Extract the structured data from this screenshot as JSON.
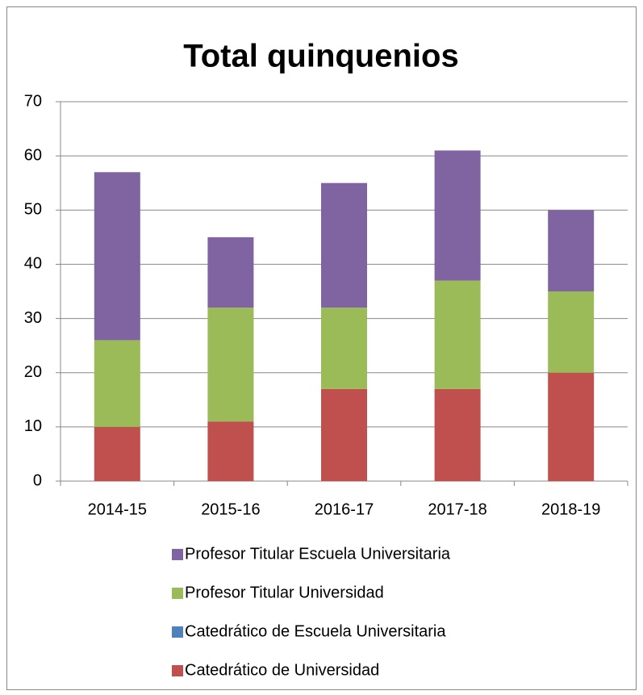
{
  "chart_data": {
    "type": "stacked-bar",
    "title": "Total quinquenios",
    "categories": [
      "2014-15",
      "2015-16",
      "2016-17",
      "2017-18",
      "2018-19"
    ],
    "series": [
      {
        "name": "Catedrático de Universidad",
        "color": "#c0504d",
        "values": [
          10,
          11,
          17,
          17,
          20
        ]
      },
      {
        "name": "Catedrático de Escuela Universitaria",
        "color": "#4f81bd",
        "values": [
          0,
          0,
          0,
          0,
          0
        ]
      },
      {
        "name": "Profesor Titular Universidad",
        "color": "#9bbb59",
        "values": [
          16,
          21,
          15,
          20,
          15
        ]
      },
      {
        "name": "Profesor Titular Escuela Universitaria",
        "color": "#8064a2",
        "values": [
          31,
          13,
          23,
          24,
          15
        ]
      }
    ],
    "ylim": [
      0,
      70
    ],
    "yticks": [
      0,
      10,
      20,
      30,
      40,
      50,
      60,
      70
    ],
    "grid": true,
    "legend": "bottom"
  }
}
